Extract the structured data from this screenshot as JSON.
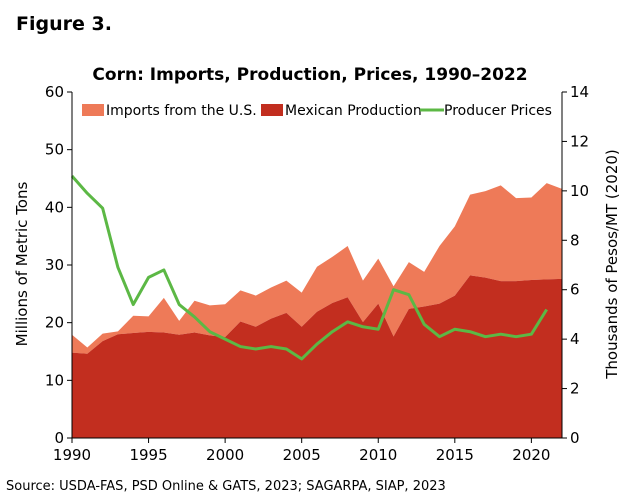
{
  "figure_label": "Figure 3.",
  "source": "Source: USDA-FAS, PSD Online & GATS, 2023; SAGARPA, SIAP, 2023",
  "colors": {
    "imports": "#ee7a58",
    "production": "#c22e1f",
    "prices": "#5cb845",
    "axis": "#000000"
  },
  "chart_data": {
    "type": "area",
    "title": "Corn: Imports, Production, Prices, 1990–2022",
    "ylabel": "Millions of Metric Tons",
    "y2label": "Thousands of Pesos/MT (2020)",
    "ylim": [
      0,
      60
    ],
    "y2lim": [
      0,
      14
    ],
    "xlim": [
      1990,
      2022
    ],
    "grid": false,
    "legend_position": "top",
    "x_ticks": [
      1990,
      1995,
      2000,
      2005,
      2010,
      2015,
      2020
    ],
    "y_ticks": [
      0,
      10,
      20,
      30,
      40,
      50,
      60
    ],
    "y2_ticks": [
      0,
      2,
      4,
      6,
      8,
      10,
      12,
      14
    ],
    "x": [
      1990,
      1991,
      1992,
      1993,
      1994,
      1995,
      1996,
      1997,
      1998,
      1999,
      2000,
      2001,
      2002,
      2003,
      2004,
      2005,
      2006,
      2007,
      2008,
      2009,
      2010,
      2011,
      2012,
      2013,
      2014,
      2015,
      2016,
      2017,
      2018,
      2019,
      2020,
      2021,
      2022
    ],
    "series": [
      {
        "name": "Imports from the U.S.",
        "kind": "stacked-area",
        "axis": "left",
        "values": [
          3.1,
          1.1,
          1.3,
          0.5,
          3.0,
          2.7,
          6.0,
          2.4,
          5.5,
          5.2,
          5.7,
          5.4,
          5.4,
          5.4,
          5.6,
          5.9,
          7.8,
          8.0,
          8.9,
          7.2,
          7.8,
          8.7,
          8.1,
          6.0,
          10.0,
          12.0,
          14.0,
          15.0,
          16.6,
          14.4,
          14.3,
          16.7,
          15.6
        ]
      },
      {
        "name": "Mexican Production",
        "kind": "stacked-area",
        "axis": "left",
        "values": [
          14.8,
          14.6,
          16.8,
          18.0,
          18.2,
          18.4,
          18.3,
          17.9,
          18.3,
          17.8,
          17.5,
          20.2,
          19.3,
          20.7,
          21.7,
          19.3,
          21.9,
          23.4,
          24.4,
          20.1,
          23.3,
          17.6,
          22.4,
          22.8,
          23.3,
          24.7,
          28.2,
          27.8,
          27.2,
          27.2,
          27.4,
          27.5,
          27.6
        ]
      },
      {
        "name": "Producer Prices",
        "kind": "line",
        "axis": "right",
        "values": [
          10.6,
          9.9,
          9.3,
          6.9,
          5.4,
          6.5,
          6.8,
          5.4,
          4.9,
          4.3,
          4.0,
          3.7,
          3.6,
          3.7,
          3.6,
          3.2,
          3.8,
          4.3,
          4.7,
          4.5,
          4.4,
          6.0,
          5.8,
          4.6,
          4.1,
          4.4,
          4.3,
          4.1,
          4.2,
          4.1,
          4.2,
          5.2,
          null
        ]
      }
    ]
  }
}
